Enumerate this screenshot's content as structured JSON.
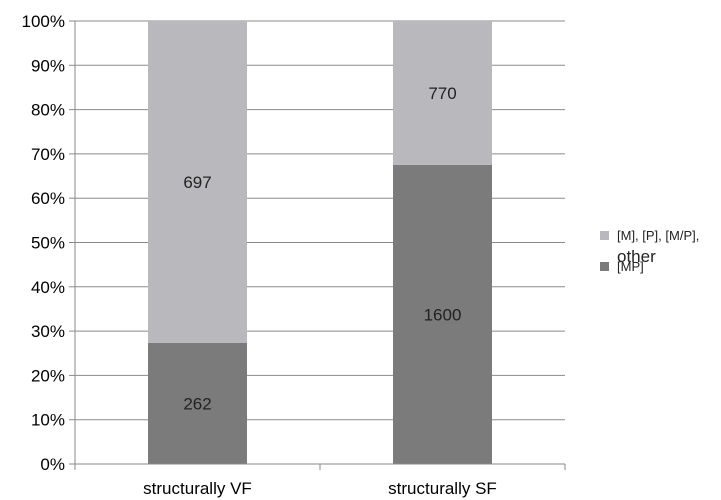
{
  "chart_data": {
    "type": "bar",
    "stacked": true,
    "normalized": true,
    "categories": [
      "structurally VF",
      "structurally SF"
    ],
    "series": [
      {
        "name": "[MP]",
        "values": [
          262,
          1600
        ],
        "color": "#7b7b7b"
      },
      {
        "name": "[M], [P], [M/P], other",
        "values": [
          697,
          770
        ],
        "color": "#b9b9bd"
      }
    ],
    "legend": {
      "position": "right",
      "entries": [
        {
          "line1": "[M], [P], [M/P],",
          "line2": "other",
          "color": "#b9b9bd"
        },
        {
          "line1": "[MP]",
          "line2": "",
          "color": "#7b7b7b"
        }
      ]
    },
    "y_ticks": [
      "0%",
      "10%",
      "20%",
      "30%",
      "40%",
      "50%",
      "60%",
      "70%",
      "80%",
      "90%",
      "100%"
    ],
    "ylim": [
      0,
      100
    ],
    "grid": true
  }
}
